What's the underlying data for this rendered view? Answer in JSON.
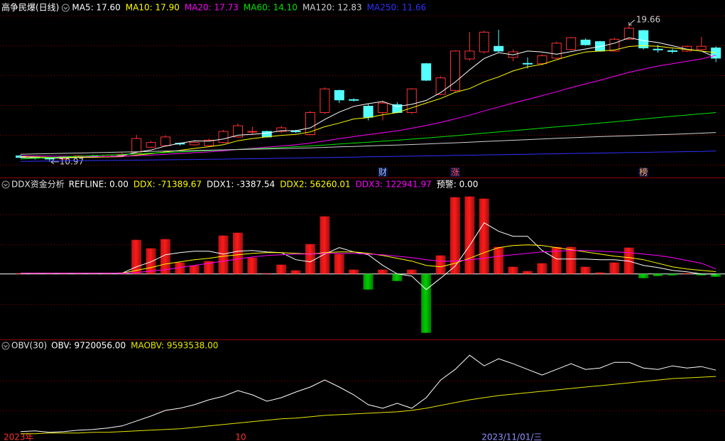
{
  "chart_data": [
    {
      "type": "candlestick",
      "title": "高争民爆(日线)",
      "categories": [
        "2023年",
        null,
        null,
        null,
        null,
        null,
        null,
        null,
        null,
        null,
        null,
        null,
        null,
        null,
        null,
        null,
        "10",
        null,
        null,
        null,
        null,
        null,
        null,
        null,
        null,
        null,
        null,
        null,
        null,
        null,
        null,
        null,
        null,
        "2023/11/01/三",
        null,
        null,
        null,
        null,
        null,
        null,
        null,
        null,
        null,
        null,
        null,
        null,
        null,
        null,
        null
      ],
      "category_colors": [
        "#ff3030",
        null,
        null,
        null,
        null,
        null,
        null,
        null,
        null,
        null,
        null,
        null,
        null,
        null,
        null,
        null,
        "#ff3030",
        null,
        null,
        null,
        null,
        null,
        null,
        null,
        null,
        null,
        null,
        null,
        null,
        null,
        null,
        null,
        null,
        "#9090ff",
        null,
        null,
        null,
        null,
        null,
        null,
        null,
        null,
        null,
        null,
        null,
        null,
        null,
        null,
        null
      ],
      "open": [
        11.35,
        11.25,
        11.2,
        11.15,
        11.3,
        11.35,
        11.3,
        11.4,
        11.5,
        11.9,
        12.0,
        12.15,
        12.05,
        12.0,
        12.2,
        12.55,
        12.9,
        12.9,
        12.9,
        12.92,
        12.7,
        14.1,
        15.5,
        14.92,
        14.5,
        14.1,
        14.6,
        14.1,
        17.2,
        15.25,
        15.5,
        17.5,
        17.95,
        18.3,
        17.6,
        17.22,
        17.2,
        17.55,
        18.1,
        18.7,
        18.6,
        18.0,
        18.75,
        19.3,
        18.12,
        18.02,
        18.0,
        18.1,
        18.2
      ],
      "high": [
        11.42,
        11.3,
        11.25,
        11.35,
        11.4,
        11.42,
        11.45,
        11.55,
        12.68,
        12.3,
        12.65,
        12.2,
        12.3,
        12.45,
        13.0,
        13.4,
        13.2,
        12.95,
        13.25,
        13.0,
        14.2,
        15.7,
        15.55,
        15.0,
        14.65,
        14.85,
        14.75,
        15.65,
        17.25,
        16.4,
        18.05,
        19.2,
        19.3,
        19.35,
        18.1,
        17.6,
        17.8,
        18.6,
        18.9,
        18.8,
        18.65,
        18.85,
        19.66,
        19.35,
        18.4,
        18.15,
        18.35,
        18.9,
        18.3
      ],
      "low": [
        11.2,
        11.12,
        10.97,
        11.1,
        11.25,
        11.25,
        11.25,
        11.35,
        11.45,
        11.85,
        11.95,
        12.0,
        12.0,
        11.95,
        12.15,
        12.5,
        12.7,
        12.5,
        12.8,
        12.8,
        12.65,
        14.0,
        14.7,
        14.8,
        13.6,
        13.6,
        14.05,
        14.0,
        16.1,
        15.2,
        15.4,
        17.4,
        17.85,
        17.95,
        17.35,
        16.9,
        17.1,
        17.5,
        18.05,
        18.35,
        17.95,
        17.95,
        18.7,
        18.1,
        17.9,
        17.85,
        17.95,
        18.05,
        17.3
      ],
      "close": [
        11.25,
        11.2,
        11.15,
        11.3,
        11.35,
        11.3,
        11.4,
        11.45,
        12.45,
        12.2,
        12.55,
        12.1,
        12.2,
        12.35,
        12.9,
        13.26,
        12.9,
        12.55,
        13.13,
        12.9,
        14.1,
        15.6,
        14.9,
        14.9,
        13.8,
        14.7,
        14.1,
        15.6,
        16.15,
        16.3,
        18.0,
        18.0,
        19.2,
        18.0,
        17.95,
        17.2,
        17.7,
        18.5,
        18.85,
        18.4,
        18.0,
        18.75,
        19.45,
        18.2,
        18.1,
        18.0,
        18.3,
        18.3,
        17.55
      ],
      "up_color": "#ff3232",
      "down_color": "#54ffff",
      "events": [
        null,
        null,
        null,
        null,
        null,
        null,
        null,
        null,
        null,
        null,
        null,
        null,
        null,
        null,
        null,
        null,
        null,
        null,
        null,
        null,
        null,
        null,
        null,
        null,
        null,
        {
          "label": "财",
          "color": "#8fc8ff"
        },
        null,
        null,
        null,
        null,
        {
          "label": "涨",
          "color": "#ff5050"
        },
        null,
        null,
        null,
        null,
        null,
        null,
        null,
        null,
        null,
        null,
        null,
        null,
        {
          "label": "榜",
          "color": "#ffb060"
        },
        null,
        null,
        null,
        null,
        null
      ],
      "ylim": [
        10.65,
        20.43
      ],
      "series": [
        {
          "name": "MA5: 17.60",
          "color": "#ffffff",
          "values": [
            11.25,
            11.22,
            11.2,
            11.22,
            11.25,
            11.26,
            11.3,
            11.36,
            11.58,
            11.72,
            11.97,
            12.15,
            12.3,
            12.28,
            12.42,
            12.66,
            12.72,
            12.79,
            12.95,
            12.95,
            13.13,
            13.66,
            14.13,
            14.49,
            14.66,
            14.8,
            14.48,
            14.62,
            14.87,
            15.37,
            16.03,
            16.81,
            17.53,
            17.9,
            17.76,
            18.0,
            17.94,
            17.8,
            17.97,
            18.13,
            18.29,
            18.5,
            18.85,
            18.67,
            18.54,
            18.34,
            18.12,
            18.0,
            17.6
          ]
        },
        {
          "name": "MA10: 17.90",
          "color": "#ffff00",
          "values": [
            11.3,
            11.28,
            11.26,
            11.26,
            11.27,
            11.27,
            11.28,
            11.3,
            11.4,
            11.49,
            11.6,
            11.7,
            11.82,
            11.93,
            12.06,
            12.31,
            12.45,
            12.55,
            12.65,
            12.71,
            12.87,
            13.2,
            13.43,
            13.69,
            13.78,
            13.96,
            14.1,
            14.4,
            14.7,
            14.99,
            15.38,
            15.62,
            16.05,
            16.36,
            16.74,
            17.0,
            17.16,
            17.45,
            17.72,
            17.94,
            18.0,
            18.07,
            18.29,
            18.35,
            18.3,
            18.2,
            18.1,
            18.0,
            17.9
          ]
        },
        {
          "name": "MA20: 17.73",
          "color": "#ff00ff",
          "values": [
            11.35,
            11.34,
            11.33,
            11.32,
            11.31,
            11.31,
            11.31,
            11.32,
            11.36,
            11.4,
            11.45,
            11.5,
            11.55,
            11.6,
            11.67,
            11.76,
            11.83,
            11.9,
            11.98,
            12.05,
            12.16,
            12.3,
            12.44,
            12.57,
            12.7,
            12.82,
            12.94,
            13.1,
            13.28,
            13.47,
            13.7,
            13.93,
            14.2,
            14.45,
            14.7,
            14.93,
            15.17,
            15.42,
            15.68,
            15.92,
            16.15,
            16.4,
            16.65,
            16.85,
            17.05,
            17.2,
            17.35,
            17.5,
            17.73
          ]
        },
        {
          "name": "MA60: 14.10",
          "color": "#00e600",
          "values": [
            11.15,
            11.2,
            11.24,
            11.28,
            11.32,
            11.36,
            11.4,
            11.44,
            11.48,
            11.52,
            11.56,
            11.6,
            11.64,
            11.68,
            11.72,
            11.76,
            11.8,
            11.84,
            11.88,
            11.93,
            11.98,
            12.04,
            12.1,
            12.16,
            12.22,
            12.28,
            12.34,
            12.41,
            12.48,
            12.55,
            12.63,
            12.71,
            12.79,
            12.87,
            12.95,
            13.03,
            13.11,
            13.19,
            13.27,
            13.35,
            13.43,
            13.51,
            13.6,
            13.69,
            13.78,
            13.86,
            13.94,
            14.02,
            14.1
          ]
        },
        {
          "name": "MA120: 12.83",
          "color": "#d0d0d0",
          "values": [
            11.45,
            11.47,
            11.49,
            11.51,
            11.53,
            11.55,
            11.57,
            11.59,
            11.61,
            11.63,
            11.65,
            11.67,
            11.69,
            11.71,
            11.73,
            11.75,
            11.77,
            11.79,
            11.81,
            11.83,
            11.86,
            11.89,
            11.92,
            11.95,
            11.98,
            12.01,
            12.04,
            12.07,
            12.1,
            12.14,
            12.18,
            12.22,
            12.26,
            12.3,
            12.34,
            12.38,
            12.42,
            12.46,
            12.5,
            12.54,
            12.57,
            12.6,
            12.63,
            12.66,
            12.69,
            12.72,
            12.75,
            12.79,
            12.83
          ]
        },
        {
          "name": "MA250: 11.66",
          "color": "#3030ff",
          "values": [
            11.0,
            11.01,
            11.02,
            11.03,
            11.04,
            11.05,
            11.06,
            11.07,
            11.08,
            11.09,
            11.1,
            11.11,
            11.12,
            11.13,
            11.14,
            11.16,
            11.17,
            11.18,
            11.2,
            11.21,
            11.23,
            11.24,
            11.26,
            11.27,
            11.29,
            11.3,
            11.32,
            11.33,
            11.35,
            11.36,
            11.38,
            11.39,
            11.41,
            11.42,
            11.44,
            11.45,
            11.47,
            11.48,
            11.5,
            11.51,
            11.53,
            11.54,
            11.56,
            11.57,
            11.59,
            11.6,
            11.62,
            11.63,
            11.66
          ]
        }
      ]
    },
    {
      "type": "bar",
      "title": "DDX资金分析",
      "ylim": [
        -1540000,
        2100000
      ],
      "refline": {
        "name": "REFLINE: 0.00",
        "value": 0,
        "color": "#ffffff"
      },
      "bars": {
        "name": "DDX: -71389.67",
        "color": "#ffff00",
        "up_color": "#ff1a1a",
        "down_color": "#00cc00",
        "values": [
          17843,
          8922,
          8922,
          17843,
          17843,
          8922,
          17843,
          35686,
          856464,
          642348,
          874307,
          285488,
          214116,
          321174,
          963522,
          1034894,
          410389,
          17843,
          231959,
          89215,
          749406,
          1445283,
          499604,
          107058,
          -392546,
          107058,
          -178430,
          107058,
          -1480969,
          463918,
          1927044,
          1944887,
          1891358,
          678034,
          178430,
          71372,
          267645,
          678034,
          678034,
          178430,
          35686,
          285488,
          660191,
          -107058,
          -53529,
          -35686,
          17843,
          -35686,
          -71389.67
        ]
      },
      "series": [
        {
          "name": "DDX1: -3387.54",
          "color": "#ffffff",
          "values": [
            17843,
            17843,
            17843,
            17843,
            17843,
            17843,
            17843,
            17843,
            178430,
            303331,
            481761,
            535290,
            570976,
            570976,
            499604,
            570976,
            588819,
            553133,
            535290,
            356860,
            303331,
            499604,
            660191,
            553133,
            481761,
            214116,
            0,
            -53529,
            -392546,
            -107058,
            196273,
            713720,
            1284696,
            1070580,
            945679,
            945679,
            588819,
            374703,
            374703,
            374703,
            356860,
            356860,
            321174,
            214116,
            160587,
            89215,
            53529,
            0,
            -3387.54
          ]
        },
        {
          "name": "DDX2: 56260.01",
          "color": "#ffff00",
          "values": [
            17843,
            17843,
            17843,
            17843,
            17843,
            17843,
            17843,
            17843,
            89215,
            160587,
            249802,
            303331,
            356860,
            392546,
            446075,
            481761,
            517447,
            535290,
            535290,
            517447,
            499604,
            535290,
            553133,
            553133,
            517447,
            463918,
            392546,
            321174,
            214116,
            178430,
            267645,
            392546,
            535290,
            660191,
            713720,
            731563,
            713720,
            660191,
            606662,
            553133,
            499604,
            446075,
            410389,
            356860,
            267645,
            178430,
            124901,
            89215,
            56260.01
          ]
        },
        {
          "name": "DDX3: 122941.97",
          "color": "#ff00ff",
          "values": [
            17843,
            17843,
            17843,
            17843,
            17843,
            17843,
            17843,
            17843,
            35686,
            71372,
            107058,
            160587,
            214116,
            267645,
            321174,
            374703,
            428232,
            463918,
            481761,
            499604,
            499604,
            517447,
            517447,
            517447,
            499604,
            481761,
            446075,
            410389,
            356860,
            321174,
            321174,
            356860,
            392546,
            446075,
            481761,
            517447,
            553133,
            570976,
            588819,
            588819,
            570976,
            553133,
            535290,
            499604,
            463918,
            410389,
            339017,
            267645,
            122941.97
          ]
        }
      ],
      "warning": {
        "name": "预警: 0.00",
        "value": 0,
        "color": "#ffffff"
      }
    },
    {
      "type": "line",
      "title": "OBV(30)",
      "ylim": [
        8310000,
        10160000
      ],
      "series": [
        {
          "name": "OBV: 9720056.00",
          "color": "#ffffff",
          "values": [
            8497010,
            8511068,
            8482952,
            8497010,
            8525126,
            8539184,
            8567300,
            8609474,
            8707880,
            8806286,
            8918750,
            8960924,
            9031214,
            9129620,
            9199910,
            9312374,
            9228026,
            9101504,
            9171794,
            9284258,
            9382664,
            9523244,
            9382664,
            9228026,
            9031214,
            8960924,
            9059330,
            8960924,
            9171794,
            9523244,
            9734114,
            10015274,
            9804404,
            9944984,
            9846578,
            9734114,
            9621650,
            9734114,
            9846578,
            9734114,
            9762230,
            9874694,
            9874694,
            9762230,
            9734114,
            9804404,
            9762230,
            9790346,
            9720056
          ]
        },
        {
          "name": "MAOBV: 9593538.00",
          "color": "#e6e600",
          "values": [
            8454840,
            8454840,
            8468898,
            8468898,
            8468898,
            8482956,
            8482956,
            8497014,
            8511072,
            8525130,
            8539188,
            8553246,
            8581362,
            8609478,
            8637594,
            8665710,
            8693826,
            8721942,
            8750058,
            8764116,
            8792232,
            8820348,
            8834406,
            8848464,
            8862522,
            8876580,
            8890638,
            8918754,
            8960928,
            9017160,
            9073392,
            9129624,
            9171798,
            9213972,
            9242088,
            9270204,
            9298320,
            9326436,
            9354552,
            9382668,
            9410784,
            9438900,
            9467016,
            9495132,
            9523248,
            9551364,
            9565422,
            9579480,
            9593538
          ]
        }
      ]
    }
  ]
}
